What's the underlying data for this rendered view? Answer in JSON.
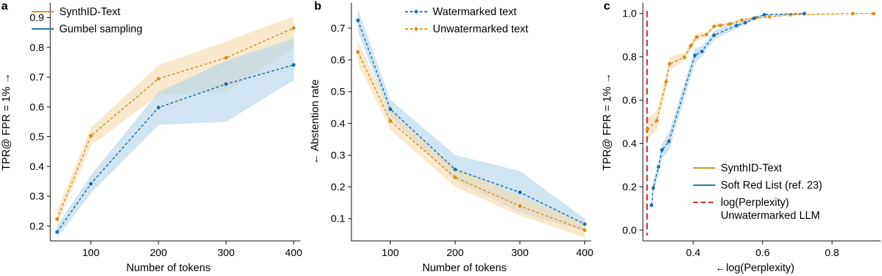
{
  "colors": {
    "synthid": "#d58f1e",
    "blue": "#1a6fa8",
    "synthid_band": "#f3dcae",
    "blue_band": "#b3d4e8",
    "red": "#e0242a"
  },
  "chart_data": [
    {
      "type": "line",
      "panel": "a",
      "xlabel": "Number of tokens",
      "ylabel": "TPR@ FPR = 1% →",
      "xlim": [
        40,
        410
      ],
      "ylim": [
        0.15,
        0.95
      ],
      "xticks": [
        100,
        200,
        300,
        400
      ],
      "xtick_labels": [
        "100",
        "200",
        "300",
        "400"
      ],
      "yticks": [
        0.2,
        0.3,
        0.4,
        0.5,
        0.6,
        0.7,
        0.8,
        0.9
      ],
      "ytick_labels": [
        "0.2",
        "0.3",
        "0.4",
        "0.5",
        "0.6",
        "0.7",
        "0.8",
        "0.9"
      ],
      "legend_position": "top-left",
      "series": [
        {
          "name": "SynthID-Text",
          "color_key": "synthid",
          "dashed": true,
          "marker": true,
          "legend_solid": true,
          "x": [
            50,
            100,
            200,
            300,
            400
          ],
          "y": [
            0.223,
            0.503,
            0.695,
            0.765,
            0.865
          ],
          "band_low": [
            0.2,
            0.47,
            0.64,
            0.65,
            0.8
          ],
          "band_high": [
            0.25,
            0.53,
            0.74,
            0.82,
            0.905
          ]
        },
        {
          "name": "Gumbel sampling",
          "color_key": "blue",
          "dashed": true,
          "marker": true,
          "legend_solid": true,
          "x": [
            50,
            100,
            200,
            300,
            400
          ],
          "y": [
            0.18,
            0.342,
            0.598,
            0.677,
            0.741
          ],
          "band_low": [
            0.16,
            0.31,
            0.54,
            0.55,
            0.69
          ],
          "band_high": [
            0.2,
            0.37,
            0.65,
            0.755,
            0.83
          ]
        }
      ]
    },
    {
      "type": "line",
      "panel": "b",
      "xlabel": "Number of tokens",
      "ylabel": "← Abstention rate",
      "xlim": [
        40,
        410
      ],
      "ylim": [
        0.03,
        0.78
      ],
      "xticks": [
        100,
        200,
        300,
        400
      ],
      "xtick_labels": [
        "100",
        "200",
        "300",
        "400"
      ],
      "yticks": [
        0.1,
        0.2,
        0.3,
        0.4,
        0.5,
        0.6,
        0.7
      ],
      "ytick_labels": [
        "0.1",
        "0.2",
        "0.3",
        "0.4",
        "0.5",
        "0.6",
        "0.7"
      ],
      "legend_position": "top-right",
      "series": [
        {
          "name": "Watermarked text",
          "color_key": "blue",
          "dashed": true,
          "marker": true,
          "legend_solid": false,
          "x": [
            50,
            100,
            200,
            300,
            400
          ],
          "y": [
            0.725,
            0.445,
            0.255,
            0.183,
            0.083
          ],
          "band_low": [
            0.69,
            0.42,
            0.22,
            0.12,
            0.06
          ],
          "band_high": [
            0.76,
            0.475,
            0.3,
            0.25,
            0.1
          ]
        },
        {
          "name": "Unwatermarked text",
          "color_key": "synthid",
          "dashed": true,
          "marker": true,
          "legend_solid": false,
          "x": [
            50,
            100,
            200,
            300,
            400
          ],
          "y": [
            0.625,
            0.408,
            0.23,
            0.14,
            0.064
          ],
          "band_low": [
            0.59,
            0.38,
            0.2,
            0.11,
            0.04
          ],
          "band_high": [
            0.66,
            0.44,
            0.26,
            0.17,
            0.085
          ]
        }
      ]
    },
    {
      "type": "line",
      "panel": "c",
      "xlabel": "←log(Perplexity)",
      "ylabel": "TPR@ FPR = 1% →",
      "xlim": [
        0.255,
        0.94
      ],
      "ylim": [
        -0.05,
        1.05
      ],
      "xticks": [
        0.4,
        0.6,
        0.8
      ],
      "xtick_labels": [
        "0.4",
        "0.6",
        "0.8"
      ],
      "yticks": [
        0.0,
        0.2,
        0.4,
        0.6,
        0.8,
        1.0
      ],
      "ytick_labels": [
        "0.0",
        "0.2",
        "0.4",
        "0.6",
        "0.8",
        "1.0"
      ],
      "legend_position": "bottom-right",
      "vline": {
        "x": 0.267,
        "label_line1": "log(Perplexity)",
        "label_line2": "Unwatermarked LLM",
        "color_key": "red"
      },
      "series": [
        {
          "name": "SynthID-Text",
          "color_key": "synthid",
          "dashed": true,
          "marker": true,
          "legend_solid": true,
          "x": [
            0.268,
            0.295,
            0.322,
            0.332,
            0.375,
            0.393,
            0.41,
            0.438,
            0.46,
            0.478,
            0.505,
            0.54,
            0.58,
            0.62,
            0.68,
            0.86,
            0.92
          ],
          "y": [
            0.465,
            0.505,
            0.685,
            0.768,
            0.798,
            0.851,
            0.892,
            0.903,
            0.941,
            0.945,
            0.952,
            0.97,
            0.98,
            0.985,
            0.995,
            1.0,
            1.0
          ],
          "band_low": [
            0.42,
            0.46,
            0.65,
            0.74,
            0.78,
            0.83,
            0.875,
            0.89,
            0.93,
            0.935,
            0.945,
            0.965,
            0.975,
            0.98,
            0.99,
            0.998,
            0.998
          ],
          "band_high": [
            0.52,
            0.55,
            0.72,
            0.8,
            0.82,
            0.87,
            0.91,
            0.915,
            0.952,
            0.955,
            0.96,
            0.978,
            0.985,
            0.99,
            1.0,
            1.0,
            1.0
          ]
        },
        {
          "name": "Soft Red List (ref. 23)",
          "color_key": "blue",
          "dashed": true,
          "marker": true,
          "legend_solid": true,
          "x": [
            0.28,
            0.285,
            0.3,
            0.31,
            0.33,
            0.405,
            0.425,
            0.46,
            0.525,
            0.55,
            0.575,
            0.605,
            0.72
          ],
          "y": [
            0.115,
            0.195,
            0.292,
            0.37,
            0.41,
            0.807,
            0.825,
            0.9,
            0.945,
            0.958,
            0.978,
            0.995,
            1.0
          ],
          "band_low": [
            0.09,
            0.17,
            0.26,
            0.33,
            0.37,
            0.77,
            0.8,
            0.88,
            0.93,
            0.948,
            0.97,
            0.99,
            0.998
          ],
          "band_high": [
            0.14,
            0.23,
            0.32,
            0.4,
            0.45,
            0.84,
            0.85,
            0.92,
            0.96,
            0.968,
            0.985,
            1.0,
            1.0
          ]
        }
      ]
    }
  ]
}
